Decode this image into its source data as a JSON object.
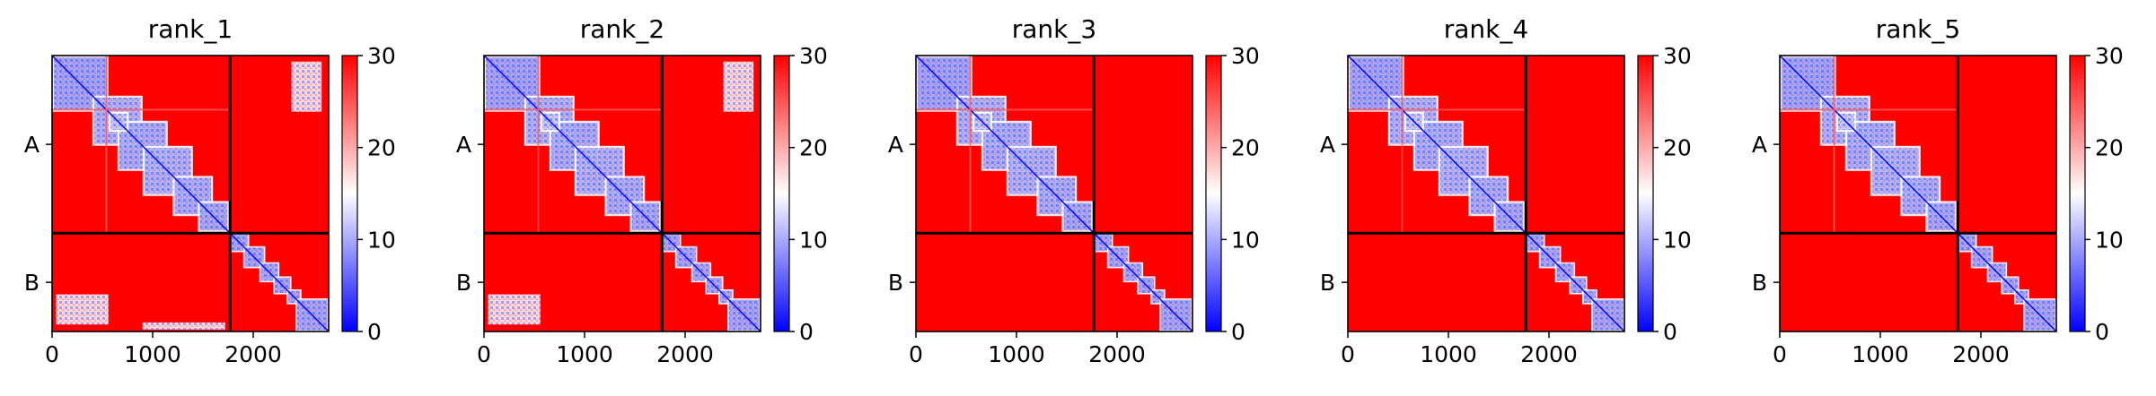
{
  "colorbar": {
    "colors": [
      "#0000ff",
      "#ffffff",
      "#ff0000"
    ],
    "vmin": 0,
    "vmax": 30,
    "ticks": [
      0,
      10,
      20,
      30
    ]
  },
  "chart_data": [
    {
      "type": "heatmap",
      "title": "rank_1",
      "xlim": [
        0,
        2750
      ],
      "x_ticks": [
        0,
        1000,
        2000
      ],
      "y_categories": [
        "A",
        "B"
      ],
      "chain_boundary": 1770,
      "distance_range": [
        0,
        30
      ],
      "bright_band_at": 540,
      "off_diagonal_low_regions": [
        {
          "x": [
            2380,
            2680
          ],
          "y": [
            60,
            560
          ]
        },
        {
          "x": [
            40,
            560
          ],
          "y": [
            2380,
            2680
          ]
        },
        {
          "x": [
            900,
            1720
          ],
          "y": [
            2660,
            2730
          ]
        }
      ]
    },
    {
      "type": "heatmap",
      "title": "rank_2",
      "xlim": [
        0,
        2750
      ],
      "x_ticks": [
        0,
        1000,
        2000
      ],
      "y_categories": [
        "A",
        "B"
      ],
      "chain_boundary": 1770,
      "distance_range": [
        0,
        30
      ],
      "bright_band_at": 540,
      "off_diagonal_low_regions": [
        {
          "x": [
            2380,
            2680
          ],
          "y": [
            60,
            560
          ]
        },
        {
          "x": [
            40,
            560
          ],
          "y": [
            2380,
            2680
          ]
        }
      ]
    },
    {
      "type": "heatmap",
      "title": "rank_3",
      "xlim": [
        0,
        2750
      ],
      "x_ticks": [
        0,
        1000,
        2000
      ],
      "y_categories": [
        "A",
        "B"
      ],
      "chain_boundary": 1770,
      "distance_range": [
        0,
        30
      ],
      "bright_band_at": 540,
      "off_diagonal_low_regions": []
    },
    {
      "type": "heatmap",
      "title": "rank_4",
      "xlim": [
        0,
        2750
      ],
      "x_ticks": [
        0,
        1000,
        2000
      ],
      "y_categories": [
        "A",
        "B"
      ],
      "chain_boundary": 1770,
      "distance_range": [
        0,
        30
      ],
      "bright_band_at": 540,
      "off_diagonal_low_regions": []
    },
    {
      "type": "heatmap",
      "title": "rank_5",
      "xlim": [
        0,
        2750
      ],
      "x_ticks": [
        0,
        1000,
        2000
      ],
      "y_categories": [
        "A",
        "B"
      ],
      "chain_boundary": 1770,
      "distance_range": [
        0,
        30
      ],
      "bright_band_at": 540,
      "off_diagonal_low_regions": []
    }
  ]
}
